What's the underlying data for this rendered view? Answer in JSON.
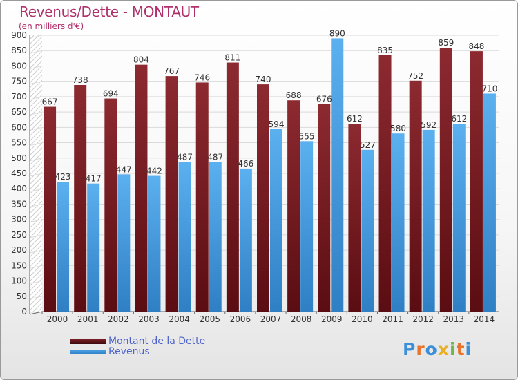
{
  "title": "Revenus/Dette - MONTAUT",
  "subtitle": "(en milliers d'€)",
  "logo_text": "Proxiti",
  "colors": {
    "dette": "#7a1e24",
    "revenus": "#4fa3e6",
    "title": "#b0306a",
    "legend_text": "#4d63c9"
  },
  "legend": [
    {
      "label": "Montant de la Dette",
      "color": "#7a1e24"
    },
    {
      "label": "Revenus",
      "color": "#4fa3e6"
    }
  ],
  "chart_data": {
    "type": "bar",
    "title": "Revenus/Dette - MONTAUT",
    "subtitle": "(en milliers d'€)",
    "categories": [
      "2000",
      "2001",
      "2002",
      "2003",
      "2004",
      "2005",
      "2006",
      "2007",
      "2008",
      "2009",
      "2010",
      "2011",
      "2012",
      "2013",
      "2014"
    ],
    "series": [
      {
        "name": "Montant de la Dette",
        "values": [
          667,
          738,
          694,
          804,
          767,
          746,
          811,
          740,
          688,
          676,
          612,
          835,
          752,
          859,
          848
        ]
      },
      {
        "name": "Revenus",
        "values": [
          423,
          417,
          447,
          442,
          487,
          487,
          466,
          594,
          555,
          890,
          527,
          580,
          592,
          612,
          710
        ]
      }
    ],
    "ylim": [
      0,
      900
    ],
    "yticks": [
      0,
      50,
      100,
      150,
      200,
      250,
      300,
      350,
      400,
      450,
      500,
      550,
      600,
      650,
      700,
      750,
      800,
      850,
      900
    ],
    "grid": true,
    "legend_position": "bottom-left"
  }
}
